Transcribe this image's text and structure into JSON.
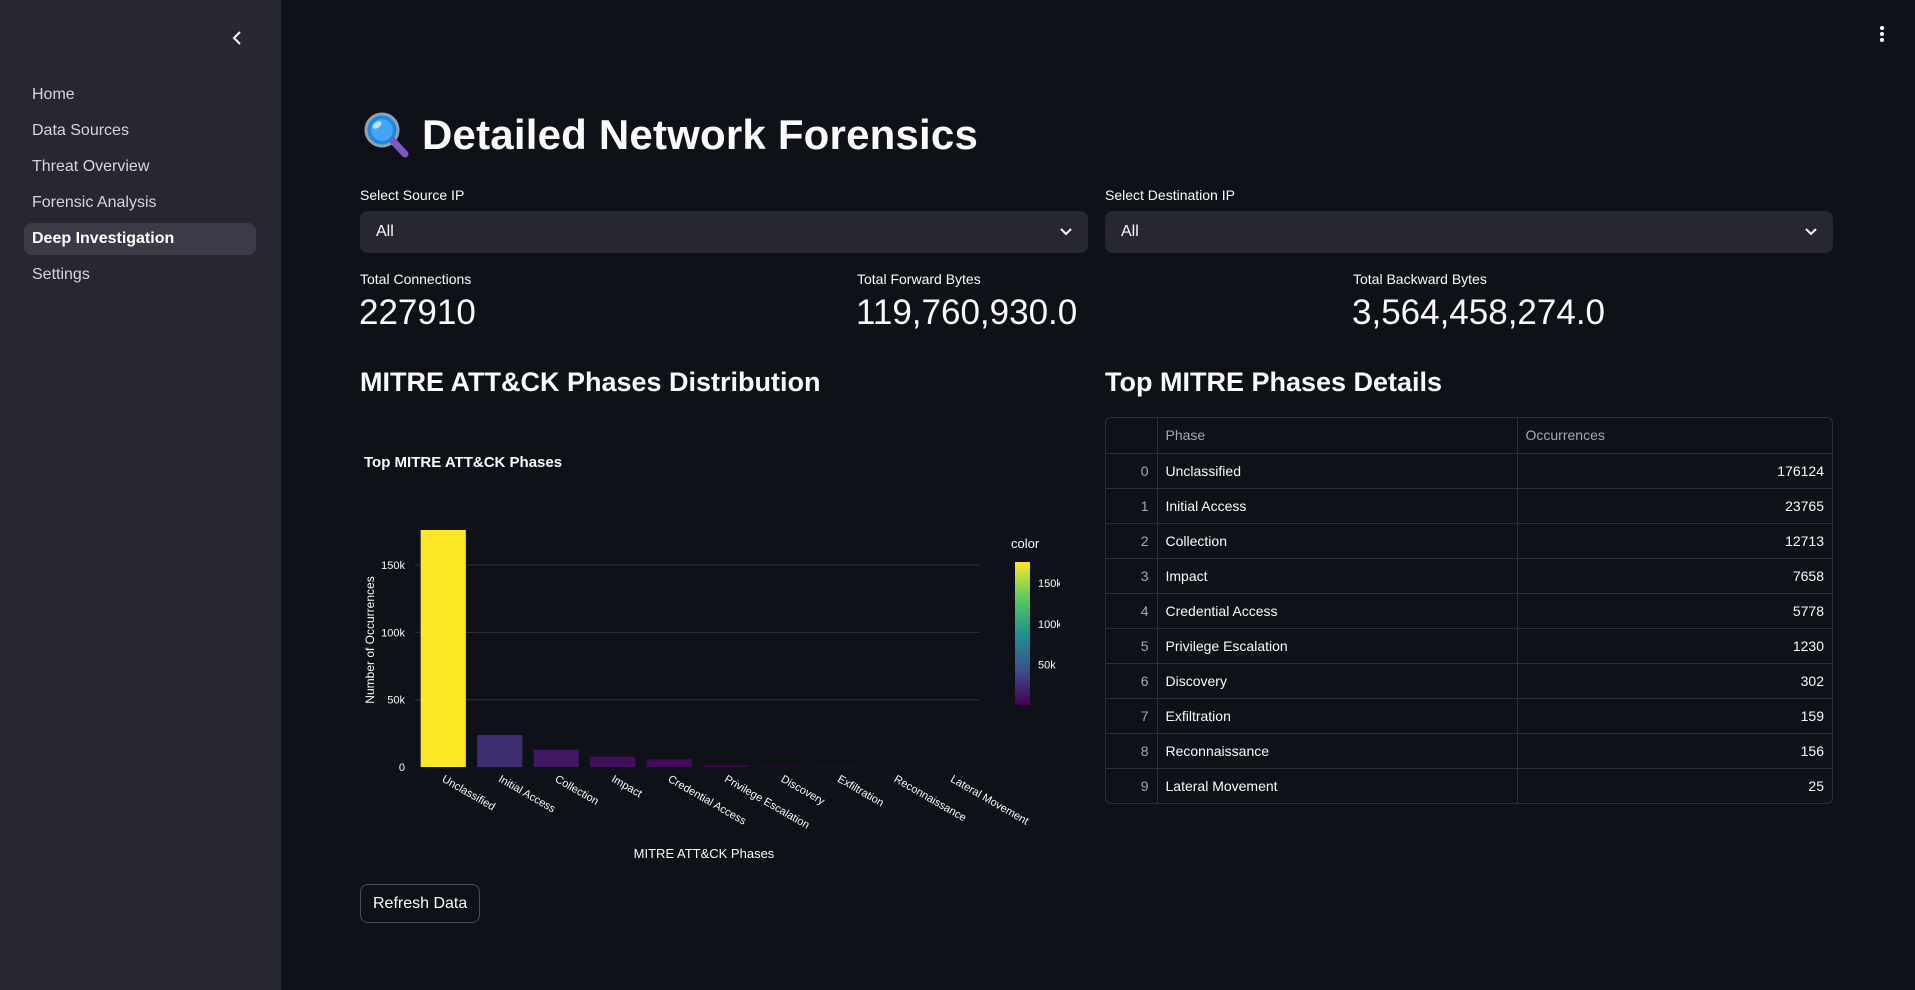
{
  "sidebar": {
    "items": [
      {
        "label": "Home",
        "active": false
      },
      {
        "label": "Data Sources",
        "active": false
      },
      {
        "label": "Threat Overview",
        "active": false
      },
      {
        "label": "Forensic Analysis",
        "active": false
      },
      {
        "label": "Deep Investigation",
        "active": true
      },
      {
        "label": "Settings",
        "active": false
      }
    ]
  },
  "header": {
    "title": "Detailed Network Forensics",
    "title_icon": "magnifying-glass-icon"
  },
  "filters": {
    "source": {
      "label": "Select Source IP",
      "value": "All"
    },
    "destination": {
      "label": "Select Destination IP",
      "value": "All"
    }
  },
  "metrics": [
    {
      "label": "Total Connections",
      "value": "227910"
    },
    {
      "label": "Total Forward Bytes",
      "value": "119,760,930.0"
    },
    {
      "label": "Total Backward Bytes",
      "value": "3,564,458,274.0"
    }
  ],
  "sections": {
    "chart_title": "MITRE ATT&CK Phases Distribution",
    "table_title": "Top MITRE Phases Details"
  },
  "chart_data": {
    "type": "bar",
    "title": "Top MITRE ATT&CK Phases",
    "xlabel": "MITRE ATT&CK Phases",
    "ylabel": "Number of Occurrences",
    "categories": [
      "Unclassified",
      "Initial Access",
      "Collection",
      "Impact",
      "Credential Access",
      "Privilege Escalation",
      "Discovery",
      "Exfiltration",
      "Reconnaissance",
      "Lateral Movement"
    ],
    "values": [
      176124,
      23765,
      12713,
      7658,
      5778,
      1230,
      302,
      159,
      156,
      25
    ],
    "ylim": [
      0,
      176124
    ],
    "yticks": [
      0,
      50000,
      100000,
      150000
    ],
    "ytick_labels": [
      "0",
      "50k",
      "100k",
      "150k"
    ],
    "colorbar": {
      "title": "color",
      "ticks": [
        "150k",
        "100k",
        "50k"
      ],
      "colorscale": "viridis"
    },
    "colors": {
      "high": "#fde725",
      "mid": "#21918c",
      "low": "#440154"
    }
  },
  "table": {
    "columns": [
      "",
      "Phase",
      "Occurrences"
    ],
    "rows": [
      {
        "index": "0",
        "phase": "Unclassified",
        "occurrences": "176124"
      },
      {
        "index": "1",
        "phase": "Initial Access",
        "occurrences": "23765"
      },
      {
        "index": "2",
        "phase": "Collection",
        "occurrences": "12713"
      },
      {
        "index": "3",
        "phase": "Impact",
        "occurrences": "7658"
      },
      {
        "index": "4",
        "phase": "Credential Access",
        "occurrences": "5778"
      },
      {
        "index": "5",
        "phase": "Privilege Escalation",
        "occurrences": "1230"
      },
      {
        "index": "6",
        "phase": "Discovery",
        "occurrences": "302"
      },
      {
        "index": "7",
        "phase": "Exfiltration",
        "occurrences": "159"
      },
      {
        "index": "8",
        "phase": "Reconnaissance",
        "occurrences": "156"
      },
      {
        "index": "9",
        "phase": "Lateral Movement",
        "occurrences": "25"
      }
    ]
  },
  "actions": {
    "refresh_label": "Refresh Data"
  }
}
